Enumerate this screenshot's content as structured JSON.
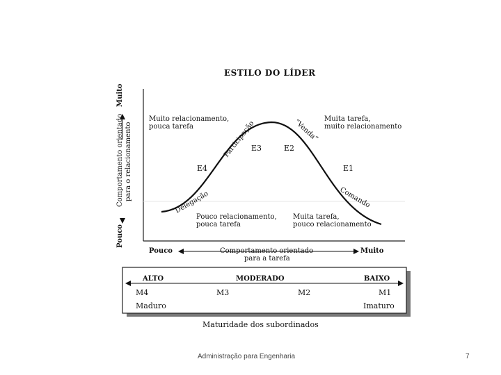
{
  "title": "ESTILO DO LÍDER",
  "y_axis": {
    "low": "Pouco",
    "high": "Muito",
    "label_line1": "Comportamento orientado",
    "label_line2": "para o relacionamento"
  },
  "x_axis": {
    "low": "Pouco",
    "high": "Muito",
    "label_line1": "Comportamento orientado",
    "label_line2": "para a tarefa"
  },
  "quadrants": {
    "top_left": [
      "Muito relacionamento,",
      "pouca tarefa"
    ],
    "top_right": [
      "Muita tarefa,",
      "muito relacionamento"
    ],
    "bottom_left": [
      "Pouco relacionamento,",
      "pouca tarefa"
    ],
    "bottom_right": [
      "Muita tarefa,",
      "pouco relacionamento"
    ]
  },
  "styles": {
    "e1": "E1",
    "e2": "E2",
    "e3": "E3",
    "e4": "E4",
    "participacao": "Participação",
    "venda": "“Venda”",
    "delegacao": "Delegação",
    "comando": "Comando"
  },
  "maturity": {
    "alto": "ALTO",
    "moderado": "MODERADO",
    "baixo": "BAIXO",
    "m4": "M4",
    "m3": "M3",
    "m2": "M2",
    "m1": "M1",
    "maduro": "Maduro",
    "imaturo": "Imaturo",
    "caption": "Maturidade dos subordinados"
  },
  "footer": {
    "course": "Administração para Engenharia",
    "page": "7"
  }
}
